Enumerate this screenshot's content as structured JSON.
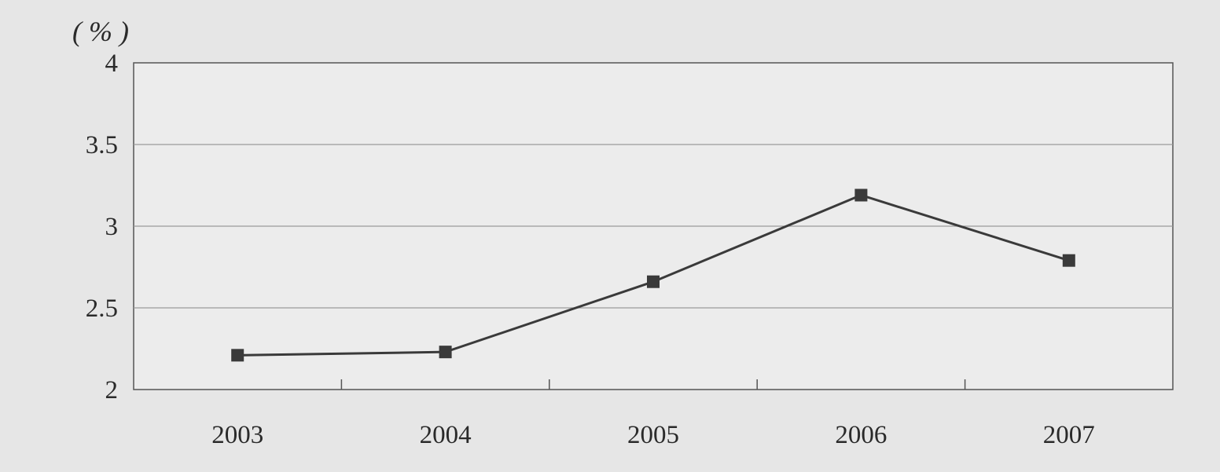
{
  "chart_data": {
    "type": "line",
    "title": "",
    "xlabel": "",
    "ylabel": "",
    "y_unit_label": "( % )",
    "categories": [
      "2003",
      "2004",
      "2005",
      "2006",
      "2007"
    ],
    "series": [
      {
        "values": [
          2.21,
          2.23,
          2.66,
          3.19,
          2.79
        ]
      }
    ],
    "ylim": [
      2,
      4
    ],
    "y_ticks": [
      "2",
      "2.5",
      "3",
      "3.5",
      "4"
    ],
    "grid": true,
    "marker": "square",
    "legend": "none",
    "colors": {
      "line": "#3a3a3a",
      "marker": "#3a3a3a",
      "grid": "#9a9a9a",
      "plot_background": "#ececec"
    }
  }
}
